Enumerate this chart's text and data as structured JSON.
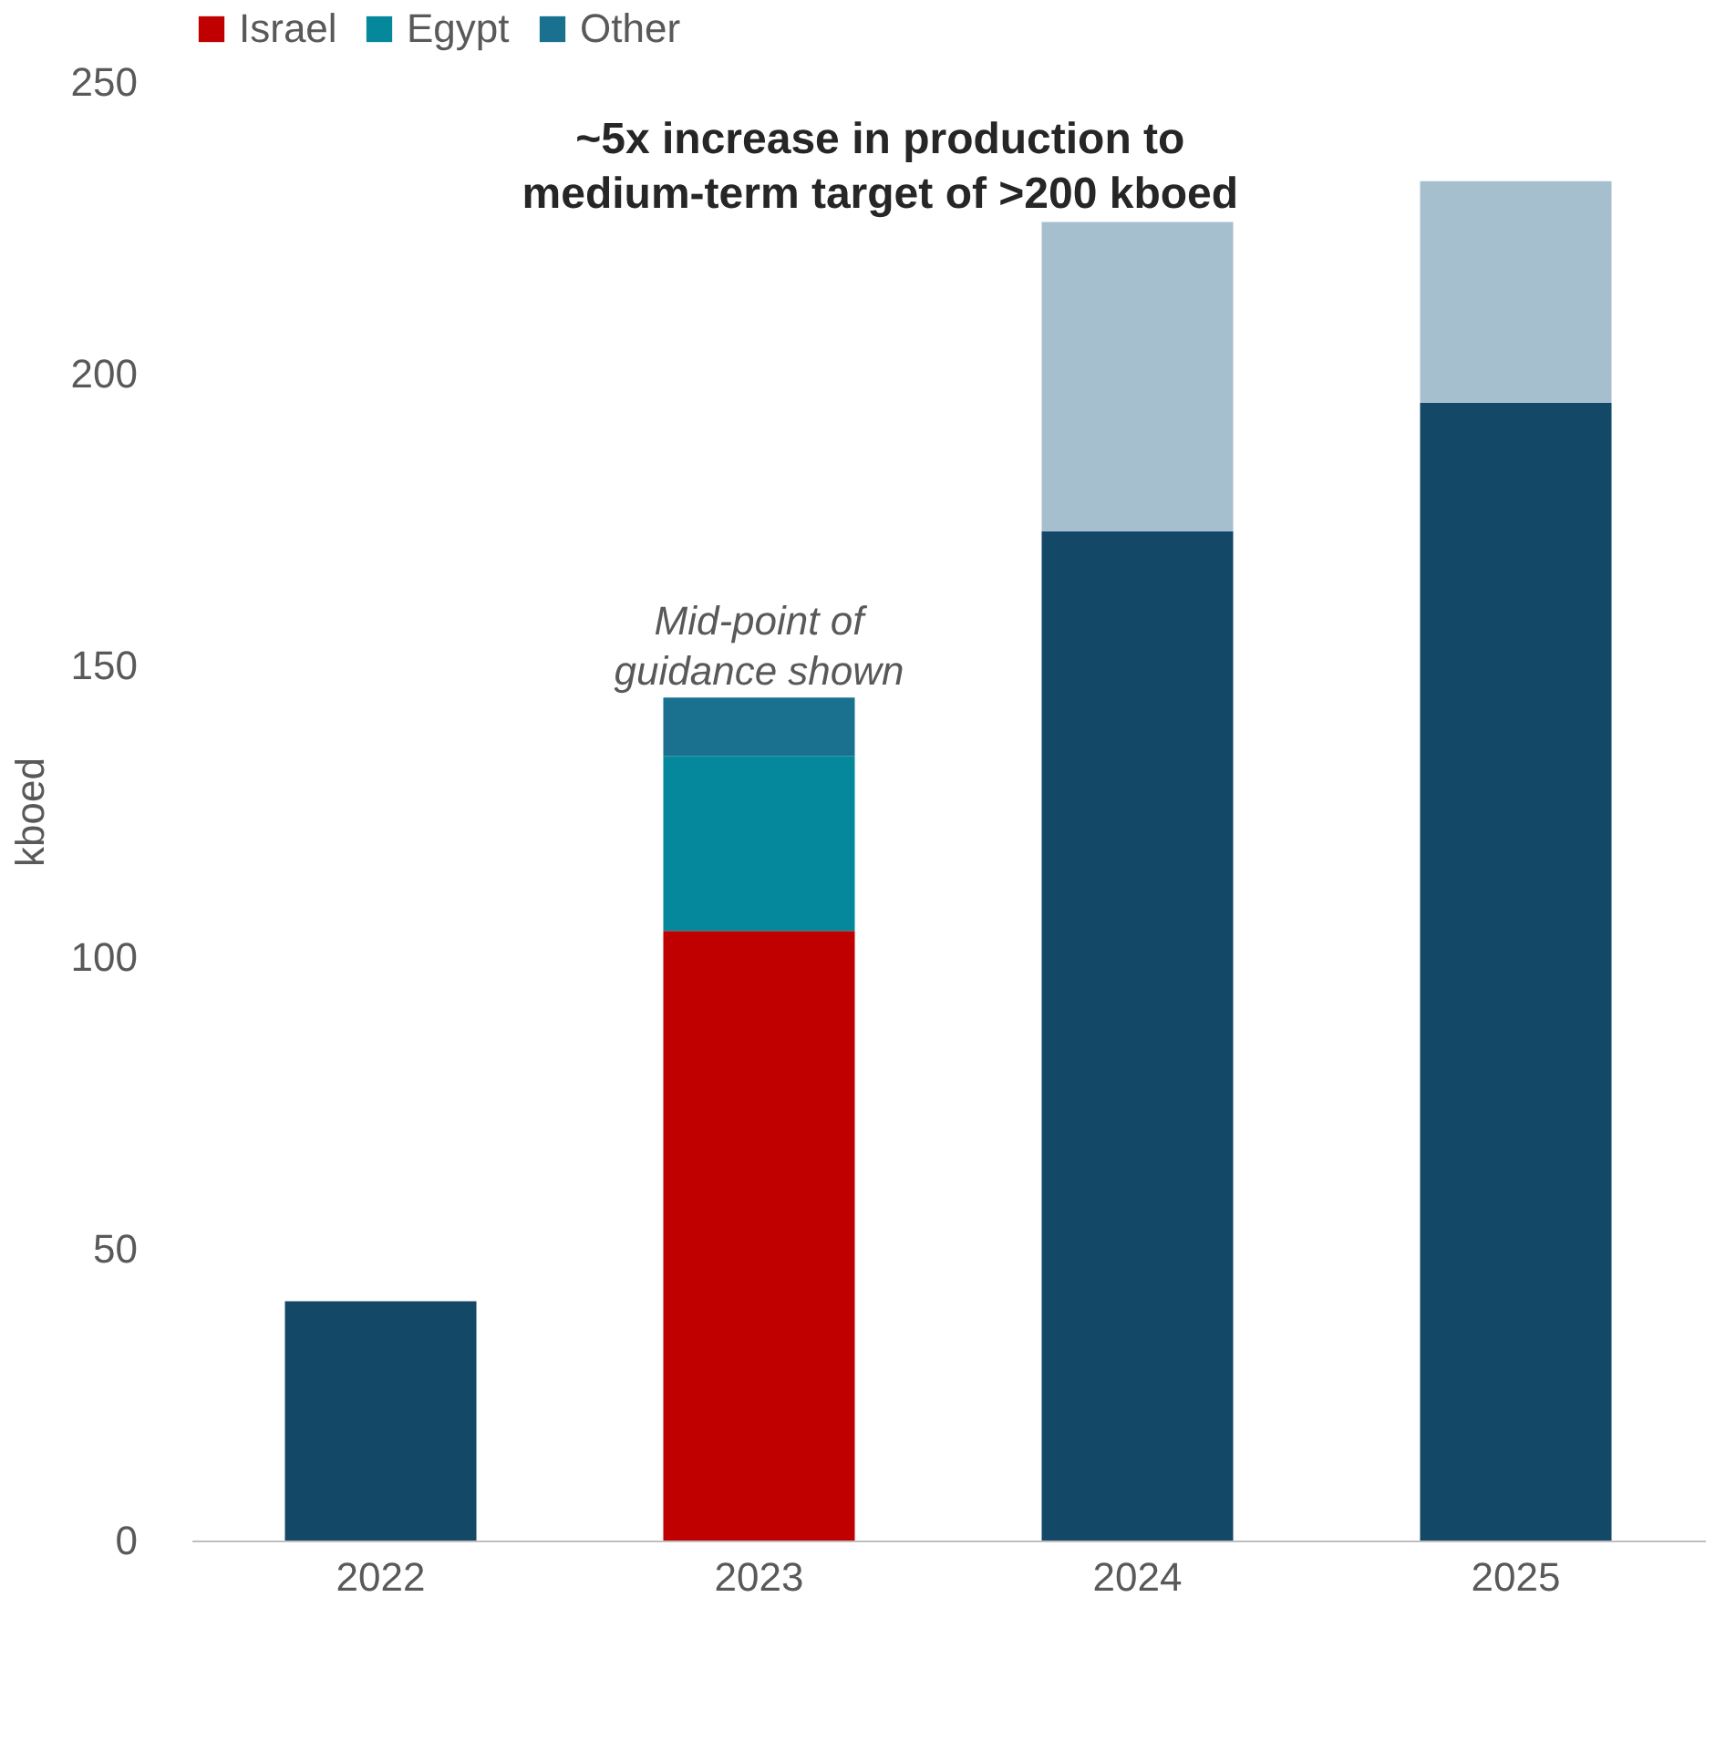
{
  "chart_data": {
    "type": "bar",
    "stacked": true,
    "ylabel": "kboed",
    "categories": [
      "2022",
      "2023",
      "2024",
      "2025"
    ],
    "ylim": [
      0,
      250
    ],
    "yticks": [
      0,
      50,
      100,
      150,
      200,
      250
    ],
    "legend": "top",
    "grid": false,
    "series": [
      {
        "name": "Israel",
        "color": "#c00000",
        "values": [
          null,
          104.5,
          null,
          null
        ]
      },
      {
        "name": "Egypt",
        "color": "#05889c",
        "values": [
          null,
          30,
          null,
          null
        ]
      },
      {
        "name": "Other",
        "color": "#19718f",
        "values": [
          null,
          10,
          null,
          null
        ]
      },
      {
        "color": "#134867",
        "values": [
          41,
          null,
          173,
          195
        ]
      },
      {
        "color": "#a6bfcf",
        "values": [
          null,
          null,
          53,
          38
        ]
      }
    ],
    "annotations": [
      "~5x increase in production to\nmedium-term target of >200 kboed",
      "Mid-point of\nguidance shown"
    ]
  }
}
